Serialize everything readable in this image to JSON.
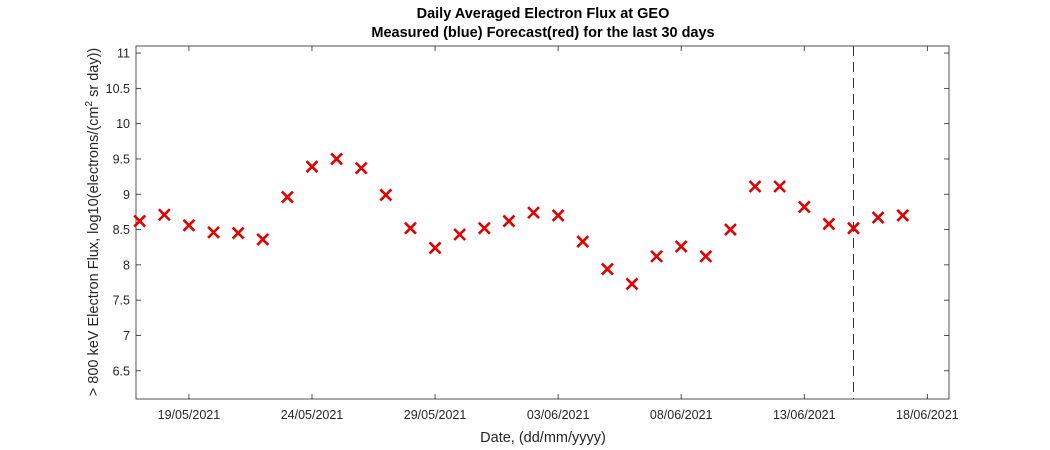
{
  "chart_data": {
    "type": "scatter",
    "title": "Daily Averaged Electron Flux at GEO",
    "subtitle": "Measured (blue) Forecast(red) for the last 30 days",
    "xlabel": "Date, (dd/mm/yyyy)",
    "ylabel_prefix": "> 800 keV Electron Flux, log10(electrons/(cm",
    "ylabel_sup": "2",
    "ylabel_suffix": " sr day))",
    "x_ticks": [
      "19/05/2021",
      "24/05/2021",
      "29/05/2021",
      "03/06/2021",
      "08/06/2021",
      "13/06/2021",
      "18/06/2021"
    ],
    "xlim": [
      "17/05/2021",
      "19/06/2021"
    ],
    "y_ticks": [
      "6.5",
      "7",
      "7.5",
      "8",
      "8.5",
      "9",
      "9.5",
      "10",
      "10.5",
      "11"
    ],
    "ylim": [
      6.1,
      11.1
    ],
    "grid": false,
    "marker": "x",
    "marker_color": "#e00000",
    "vline": {
      "x": "15/06/2021",
      "style": "dashed",
      "color": "#333333"
    },
    "series": [
      {
        "x": [
          "17/05/2021",
          "18/05/2021",
          "19/05/2021",
          "20/05/2021",
          "21/05/2021",
          "22/05/2021",
          "23/05/2021",
          "24/05/2021",
          "25/05/2021",
          "26/05/2021",
          "27/05/2021",
          "28/05/2021",
          "29/05/2021",
          "30/05/2021",
          "31/05/2021",
          "01/06/2021",
          "02/06/2021",
          "03/06/2021",
          "04/06/2021",
          "05/06/2021",
          "06/06/2021",
          "07/06/2021",
          "08/06/2021",
          "09/06/2021",
          "10/06/2021",
          "11/06/2021",
          "12/06/2021",
          "13/06/2021",
          "14/06/2021",
          "15/06/2021",
          "16/06/2021",
          "17/06/2021"
        ],
        "y": [
          8.62,
          8.71,
          8.56,
          8.46,
          8.45,
          8.36,
          8.96,
          9.39,
          9.5,
          9.37,
          8.99,
          8.52,
          8.24,
          8.43,
          8.52,
          8.62,
          8.74,
          8.7,
          8.33,
          7.94,
          7.73,
          8.12,
          8.26,
          8.12,
          8.5,
          9.11,
          9.11,
          8.82,
          8.58,
          8.52,
          8.67,
          8.7
        ]
      }
    ]
  }
}
